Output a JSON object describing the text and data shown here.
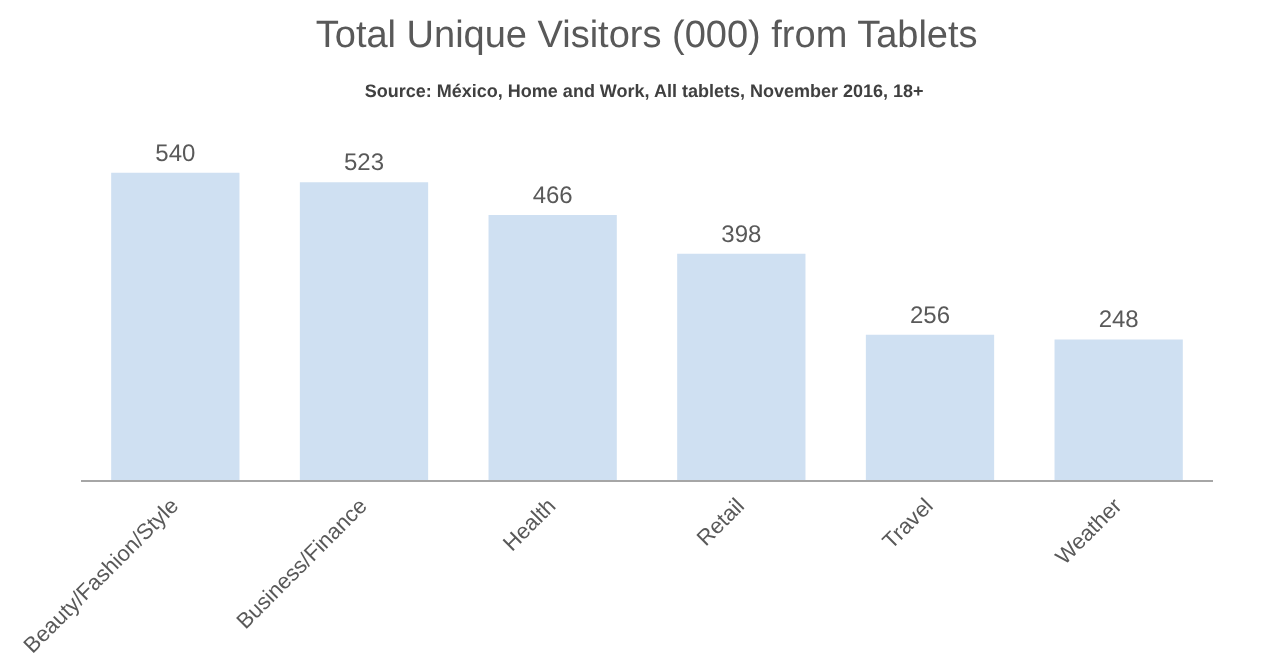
{
  "chart_data": {
    "type": "bar",
    "title": "Total Unique Visitors (000) from Tablets",
    "subtitle": "Source: México, Home and Work, All tablets,  November 2016, 18+",
    "categories": [
      "Beauty/Fashion/Style",
      "Business/Finance",
      "Health",
      "Retail",
      "Travel",
      "Weather"
    ],
    "values": [
      540,
      523,
      466,
      398,
      256,
      248
    ],
    "color": "#cfe0f2",
    "data_labels": true
  }
}
